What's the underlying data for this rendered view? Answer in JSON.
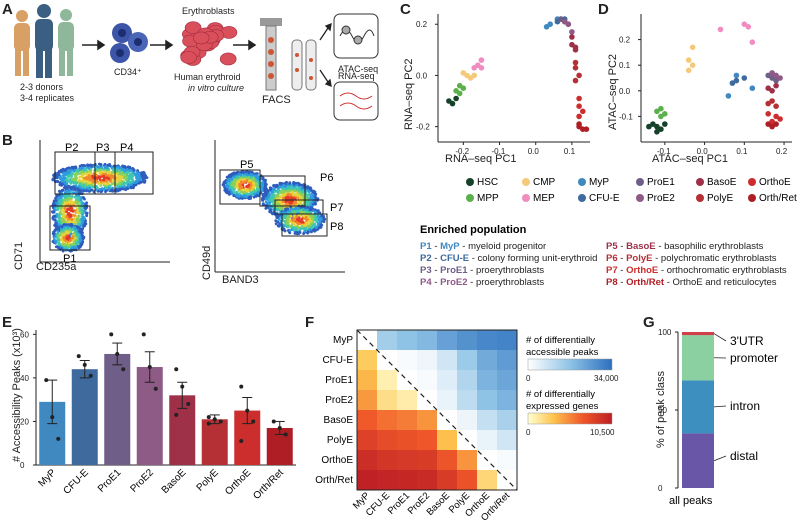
{
  "panels": {
    "a": {
      "letter": "A",
      "donors": "2-3 donors",
      "replicates": "3-4 replicates",
      "cd34": "CD34⁺",
      "erythroblasts": "Erythroblasts",
      "culture_line1": "Human erythroid",
      "culture_line2": "in vitro culture",
      "facs": "FACS",
      "atac": "ATAC-seq",
      "rna": "RNA-seq"
    },
    "b": {
      "letter": "B",
      "plot1_xlabel": "CD235a",
      "plot1_ylabel": "CD71",
      "plot2_xlabel": "BAND3",
      "plot2_ylabel": "CD49d",
      "gates": [
        "P1",
        "P2",
        "P3",
        "P4",
        "P5",
        "P6",
        "P7",
        "P8"
      ]
    },
    "c": {
      "letter": "C"
    },
    "d": {
      "letter": "D"
    },
    "e": {
      "letter": "E"
    },
    "f": {
      "letter": "F"
    },
    "g": {
      "letter": "G"
    }
  },
  "legend": [
    {
      "name": "HSC",
      "color": "#16422a"
    },
    {
      "name": "MPP",
      "color": "#5ab04a"
    },
    {
      "name": "CMP",
      "color": "#f5c97a"
    },
    {
      "name": "MEP",
      "color": "#f08cc0"
    },
    {
      "name": "MyP",
      "color": "#3f88c0"
    },
    {
      "name": "CFU-E",
      "color": "#3f6a9e"
    },
    {
      "name": "ProE1",
      "color": "#6f5f88"
    },
    {
      "name": "ProE2",
      "color": "#8e5a86"
    },
    {
      "name": "BasoE",
      "color": "#9e3048"
    },
    {
      "name": "PolyE",
      "color": "#b43035"
    },
    {
      "name": "OrthoE",
      "color": "#cc2d2d"
    },
    {
      "name": "Orth/Ret",
      "color": "#b01e25"
    }
  ],
  "enriched": {
    "title": "Enriched population",
    "left": [
      {
        "code": "P1",
        "sep": " - ",
        "pop": "MyP",
        "desc": " - myeloid progenitor",
        "color": "#3f88c0"
      },
      {
        "code": "P2",
        "sep": " - ",
        "pop": "CFU-E",
        "desc": " - colony forming unit-erythroid",
        "color": "#3f6a9e"
      },
      {
        "code": "P3",
        "sep": " - ",
        "pop": "ProE1",
        "desc": " - proerythroblasts",
        "color": "#6f5f88"
      },
      {
        "code": "P4",
        "sep": " - ",
        "pop": "ProE2",
        "desc": " - proerythroblasts",
        "color": "#8e5a86"
      }
    ],
    "right": [
      {
        "code": "P5",
        "sep": " - ",
        "pop": "BasoE",
        "desc": " - basophilic erythroblasts",
        "color": "#9e3048"
      },
      {
        "code": "P6",
        "sep": " - ",
        "pop": "PolyE",
        "desc": " - polychromatic erythroblasts",
        "color": "#b43035"
      },
      {
        "code": "P7",
        "sep": " - ",
        "pop": "OrthoE",
        "desc": " - orthochromatic erythroblasts",
        "color": "#cc2d2d"
      },
      {
        "code": "P8",
        "sep": " - ",
        "pop": "Orth/Ret",
        "desc": " - OrthoE and reticulocytes",
        "color": "#b01e25"
      }
    ]
  },
  "chart_data": [
    {
      "type": "scatter",
      "title": "",
      "xlabel": "RNA–seq PC1",
      "ylabel": "RNA–seq PC2",
      "xlim": [
        -0.27,
        0.15
      ],
      "ylim": [
        -0.26,
        0.24
      ],
      "xticks": [
        "-0.2",
        "-0.1",
        "0.0",
        "0.1"
      ],
      "yticks": [
        "0.2",
        "0.0",
        "-0.2"
      ],
      "series": [
        {
          "name": "HSC",
          "points": [
            [
              -0.24,
              -0.1
            ],
            [
              -0.22,
              -0.09
            ],
            [
              -0.23,
              -0.11
            ]
          ]
        },
        {
          "name": "MPP",
          "points": [
            [
              -0.21,
              -0.07
            ],
            [
              -0.22,
              -0.06
            ],
            [
              -0.2,
              -0.05
            ],
            [
              -0.21,
              -0.04
            ]
          ]
        },
        {
          "name": "CMP",
          "points": [
            [
              -0.19,
              0.0
            ],
            [
              -0.18,
              -0.01
            ],
            [
              -0.2,
              0.01
            ],
            [
              -0.17,
              0.0
            ]
          ]
        },
        {
          "name": "MEP",
          "points": [
            [
              -0.16,
              0.04
            ],
            [
              -0.15,
              0.06
            ],
            [
              -0.17,
              0.03
            ],
            [
              -0.15,
              0.03
            ]
          ]
        },
        {
          "name": "MyP",
          "points": [
            [
              0.03,
              0.19
            ],
            [
              0.04,
              0.2
            ],
            [
              0.06,
              0.22
            ]
          ]
        },
        {
          "name": "CFU-E",
          "points": [
            [
              0.06,
              0.21
            ],
            [
              0.07,
              0.22
            ],
            [
              0.08,
              0.22
            ]
          ]
        },
        {
          "name": "ProE1",
          "points": [
            [
              0.07,
              0.22
            ],
            [
              0.08,
              0.21
            ],
            [
              0.09,
              0.2
            ]
          ]
        },
        {
          "name": "ProE2",
          "points": [
            [
              0.08,
              0.21
            ],
            [
              0.09,
              0.2
            ],
            [
              0.1,
              0.17
            ]
          ]
        },
        {
          "name": "BasoE",
          "points": [
            [
              0.1,
              0.15
            ],
            [
              0.1,
              0.12
            ],
            [
              0.11,
              0.11
            ],
            [
              0.11,
              0.1
            ]
          ]
        },
        {
          "name": "PolyE",
          "points": [
            [
              0.11,
              0.05
            ],
            [
              0.11,
              0.03
            ],
            [
              0.12,
              0.0
            ],
            [
              0.11,
              -0.02
            ]
          ]
        },
        {
          "name": "OrthoE",
          "points": [
            [
              0.12,
              -0.09
            ],
            [
              0.12,
              -0.12
            ],
            [
              0.13,
              -0.14
            ],
            [
              0.12,
              -0.16
            ]
          ]
        },
        {
          "name": "Orth/Ret",
          "points": [
            [
              0.12,
              -0.19
            ],
            [
              0.13,
              -0.21
            ],
            [
              0.14,
              -0.21
            ],
            [
              0.12,
              -0.2
            ]
          ]
        }
      ]
    },
    {
      "type": "scatter",
      "title": "",
      "xlabel": "ATAC–seq PC1",
      "ylabel": "ATAC–seq PC2",
      "xlim": [
        -0.16,
        0.22
      ],
      "ylim": [
        -0.2,
        0.3
      ],
      "xticks": [
        "-0.1",
        "0.0",
        "0.1",
        "0.2"
      ],
      "yticks": [
        "0.2",
        "0.1",
        "0.0",
        "-0.1"
      ],
      "series": [
        {
          "name": "HSC",
          "points": [
            [
              -0.13,
              -0.13
            ],
            [
              -0.12,
              -0.14
            ],
            [
              -0.11,
              -0.15
            ],
            [
              -0.14,
              -0.14
            ],
            [
              -0.1,
              -0.13
            ],
            [
              -0.12,
              -0.16
            ]
          ]
        },
        {
          "name": "MPP",
          "points": [
            [
              -0.12,
              -0.08
            ],
            [
              -0.11,
              -0.07
            ],
            [
              -0.1,
              -0.09
            ],
            [
              -0.11,
              -0.1
            ]
          ]
        },
        {
          "name": "CMP",
          "points": [
            [
              -0.04,
              0.12
            ],
            [
              -0.03,
              0.17
            ],
            [
              -0.04,
              0.08
            ],
            [
              -0.03,
              0.1
            ]
          ]
        },
        {
          "name": "MEP",
          "points": [
            [
              0.04,
              0.24
            ],
            [
              0.1,
              0.26
            ],
            [
              0.11,
              0.25
            ],
            [
              0.12,
              0.19
            ]
          ]
        },
        {
          "name": "MyP",
          "points": [
            [
              0.08,
              0.06
            ],
            [
              0.06,
              -0.02
            ],
            [
              0.12,
              0.01
            ]
          ]
        },
        {
          "name": "CFU-E",
          "points": [
            [
              0.1,
              0.05
            ],
            [
              0.07,
              0.03
            ],
            [
              0.08,
              0.04
            ]
          ]
        },
        {
          "name": "ProE1",
          "points": [
            [
              0.16,
              0.06
            ],
            [
              0.17,
              0.05
            ],
            [
              0.18,
              0.04
            ]
          ]
        },
        {
          "name": "ProE2",
          "points": [
            [
              0.17,
              0.07
            ],
            [
              0.18,
              0.06
            ],
            [
              0.19,
              0.05
            ]
          ]
        },
        {
          "name": "BasoE",
          "points": [
            [
              0.16,
              0.01
            ],
            [
              0.17,
              0.0
            ],
            [
              0.18,
              0.02
            ]
          ]
        },
        {
          "name": "PolyE",
          "points": [
            [
              0.17,
              -0.04
            ],
            [
              0.18,
              -0.06
            ],
            [
              0.16,
              -0.05
            ]
          ]
        },
        {
          "name": "OrthoE",
          "points": [
            [
              0.16,
              -0.09
            ],
            [
              0.17,
              -0.12
            ],
            [
              0.18,
              -0.1
            ],
            [
              0.19,
              -0.11
            ]
          ]
        },
        {
          "name": "Orth/Ret",
          "points": [
            [
              0.16,
              -0.13
            ],
            [
              0.17,
              -0.14
            ],
            [
              0.18,
              -0.13
            ]
          ]
        }
      ]
    },
    {
      "type": "bar",
      "title": "",
      "xlabel": "",
      "ylabel": "# Accessibility Peaks (x10³)",
      "ylim": [
        0,
        62
      ],
      "yticks": [
        0,
        20,
        40,
        60
      ],
      "categories": [
        "MyP",
        "CFU-E",
        "ProE1",
        "ProE2",
        "BasoE",
        "PolyE",
        "OrthoE",
        "Orth/Ret"
      ],
      "values": [
        29,
        44,
        51,
        45,
        32,
        21,
        25,
        17
      ],
      "errors": [
        10,
        4,
        5,
        7,
        6,
        2,
        6,
        3
      ],
      "replicates": [
        [
          39,
          22,
          12
        ],
        [
          50,
          46,
          41
        ],
        [
          60,
          51,
          44
        ],
        [
          60,
          45,
          35
        ],
        [
          44,
          36,
          28,
          23
        ],
        [
          22,
          21,
          20,
          19
        ],
        [
          36,
          25,
          20,
          11
        ],
        [
          20,
          17,
          14
        ]
      ],
      "colors": [
        "#3f88c0",
        "#3f6a9e",
        "#6f5f88",
        "#8e5a86",
        "#9e3048",
        "#b43035",
        "#cc2d2d",
        "#b01e25"
      ]
    },
    {
      "type": "heatmap",
      "title": "",
      "labels": [
        "MyP",
        "CFU-E",
        "ProE1",
        "ProE2",
        "BasoE",
        "PolyE",
        "OrthoE",
        "Orth/Ret"
      ],
      "upper_legend_line1": "# of differentially",
      "upper_legend_line2": "accessible peaks",
      "upper_scale_min": "0",
      "upper_scale_max": "34,000",
      "lower_legend_line1": "# of differentially",
      "lower_legend_line2": "expressed genes",
      "lower_scale_min": "0",
      "lower_scale_max": "10,500",
      "upper_max": 34000,
      "lower_max": 10500,
      "matrix": [
        [
          null,
          14000,
          17000,
          19000,
          24000,
          27000,
          29000,
          30000
        ],
        [
          2800,
          null,
          1000,
          2500,
          7000,
          15000,
          22000,
          25000
        ],
        [
          3600,
          800,
          null,
          1200,
          5000,
          12000,
          20000,
          23000
        ],
        [
          4600,
          1800,
          1000,
          null,
          3500,
          10000,
          17000,
          20000
        ],
        [
          6800,
          6000,
          5600,
          4800,
          null,
          2800,
          9000,
          13000
        ],
        [
          8200,
          7600,
          7300,
          6900,
          3300,
          null,
          3500,
          7000
        ],
        [
          9500,
          9000,
          8800,
          8600,
          7100,
          4800,
          null,
          1200
        ],
        [
          10300,
          10100,
          9900,
          9700,
          8600,
          7200,
          2200,
          null
        ]
      ]
    },
    {
      "type": "bar",
      "title": "",
      "xlabel": "all peaks",
      "ylabel": "% of peak class",
      "ylim": [
        0,
        100
      ],
      "yticks": [
        0,
        50,
        100
      ],
      "categories": [
        "all peaks"
      ],
      "series": [
        {
          "name": "distal",
          "values": [
            35
          ],
          "color": "#6a56a6"
        },
        {
          "name": "intron",
          "values": [
            34
          ],
          "color": "#3c8fbf"
        },
        {
          "name": "promoter",
          "values": [
            29
          ],
          "color": "#8bd0a0"
        },
        {
          "name": "3'UTR",
          "values": [
            2
          ],
          "color": "#d0404a"
        }
      ]
    }
  ]
}
